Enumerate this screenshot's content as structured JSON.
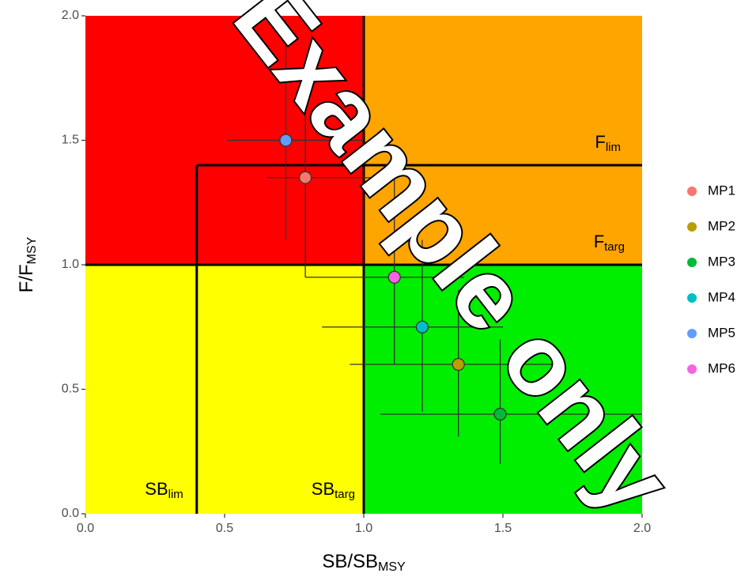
{
  "chart_data": {
    "type": "scatter",
    "x_label": {
      "main": "SB/SB",
      "sub": "MSY"
    },
    "y_label": {
      "main": "F/F",
      "sub": "MSY"
    },
    "xlim": [
      0,
      2
    ],
    "ylim": [
      0,
      2
    ],
    "xticks": [
      {
        "value": 0,
        "label": "0.0"
      },
      0.5,
      {
        "value": 1,
        "label": "1.0"
      },
      1.5,
      {
        "value": 2,
        "label": "2.0"
      }
    ],
    "yticks": [
      {
        "value": 0,
        "label": "0.0"
      },
      0.5,
      {
        "value": 1,
        "label": "1.0"
      },
      1.5,
      {
        "value": 2,
        "label": "2.0"
      }
    ],
    "reference_lines": {
      "sb_lim": {
        "value": 0.4,
        "label": "SB",
        "sub": "lim"
      },
      "sb_targ": {
        "value": 1.0,
        "label": "SB",
        "sub": "targ"
      },
      "f_lim": {
        "value": 1.4,
        "label": "F",
        "sub": "lim"
      },
      "f_targ": {
        "value": 1.0,
        "label": "F",
        "sub": "targ"
      }
    },
    "zone_colors": {
      "overfished_overfishing": "#ff0000",
      "overfishing": "#ffa500",
      "overfished": "#ffff00",
      "healthy": "#00ee00"
    },
    "series": [
      {
        "name": "MP1",
        "color": "#f8766d",
        "x": 0.79,
        "y": 1.35,
        "x_range": [
          0.65,
          1.11
        ],
        "y_range": [
          0.95,
          1.68
        ]
      },
      {
        "name": "MP2",
        "color": "#b79f00",
        "x": 1.34,
        "y": 0.6,
        "x_range": [
          0.95,
          1.72
        ],
        "y_range": [
          0.31,
          0.9
        ]
      },
      {
        "name": "MP3",
        "color": "#00ba38",
        "x": 1.49,
        "y": 0.4,
        "x_range": [
          1.06,
          2.0
        ],
        "y_range": [
          0.2,
          0.7
        ]
      },
      {
        "name": "MP4",
        "color": "#00bfc4",
        "x": 1.21,
        "y": 0.75,
        "x_range": [
          0.85,
          1.5
        ],
        "y_range": [
          0.41,
          1.1
        ]
      },
      {
        "name": "MP5",
        "color": "#619cff",
        "x": 0.72,
        "y": 1.5,
        "x_range": [
          0.51,
          1.0
        ],
        "y_range": [
          1.1,
          1.98
        ]
      },
      {
        "name": "MP6",
        "color": "#f564e3",
        "x": 1.11,
        "y": 0.95,
        "x_range": [
          0.79,
          1.36
        ],
        "y_range": [
          0.6,
          1.35
        ]
      }
    ],
    "watermark": "Example only"
  }
}
